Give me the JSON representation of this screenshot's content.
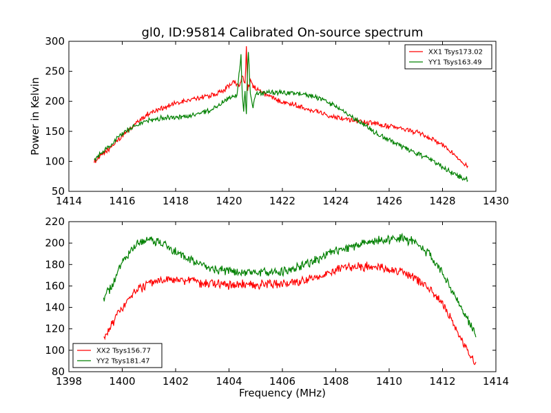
{
  "figure": {
    "title": "gl0, ID:95814 Calibrated On-source spectrum"
  },
  "chart_data": [
    {
      "type": "line",
      "title": "gl0, ID:95814 Calibrated On-source spectrum",
      "xlabel": "",
      "ylabel": "Power in Kelvin",
      "xlim": [
        1414,
        1430
      ],
      "ylim": [
        50,
        300
      ],
      "xticks": [
        1414,
        1416,
        1418,
        1420,
        1422,
        1424,
        1426,
        1428,
        1430
      ],
      "yticks": [
        50,
        100,
        150,
        200,
        250,
        300
      ],
      "grid": false,
      "legend_position": "top-right",
      "series": [
        {
          "name": "XX1 Tsys173.02",
          "color": "#ff0000",
          "points": [
            [
              1414.95,
              100
            ],
            [
              1415.5,
              120
            ],
            [
              1416.0,
              142
            ],
            [
              1416.5,
              163
            ],
            [
              1417.0,
              180
            ],
            [
              1417.5,
              189
            ],
            [
              1418.0,
              196
            ],
            [
              1418.5,
              202
            ],
            [
              1419.0,
              207
            ],
            [
              1419.5,
              212
            ],
            [
              1419.8,
              218
            ],
            [
              1420.0,
              226
            ],
            [
              1420.2,
              232
            ],
            [
              1420.4,
              225
            ],
            [
              1420.5,
              245
            ],
            [
              1420.6,
              230
            ],
            [
              1420.65,
              290
            ],
            [
              1420.7,
              220
            ],
            [
              1420.8,
              235
            ],
            [
              1420.9,
              225
            ],
            [
              1421.0,
              222
            ],
            [
              1421.5,
              208
            ],
            [
              1422.0,
              200
            ],
            [
              1422.5,
              194
            ],
            [
              1423.0,
              187
            ],
            [
              1423.5,
              180
            ],
            [
              1424.0,
              174
            ],
            [
              1424.5,
              170
            ],
            [
              1425.0,
              166
            ],
            [
              1425.5,
              162
            ],
            [
              1426.0,
              158
            ],
            [
              1426.5,
              154
            ],
            [
              1427.0,
              149
            ],
            [
              1427.5,
              140
            ],
            [
              1428.0,
              127
            ],
            [
              1428.5,
              110
            ],
            [
              1428.95,
              91
            ]
          ]
        },
        {
          "name": "YY1 Tsys163.49",
          "color": "#008000",
          "points": [
            [
              1414.95,
              103
            ],
            [
              1415.5,
              125
            ],
            [
              1416.0,
              146
            ],
            [
              1416.5,
              160
            ],
            [
              1417.0,
              168
            ],
            [
              1417.5,
              172
            ],
            [
              1418.0,
              173
            ],
            [
              1418.5,
              175
            ],
            [
              1419.0,
              180
            ],
            [
              1419.5,
              190
            ],
            [
              1420.0,
              205
            ],
            [
              1420.3,
              210
            ],
            [
              1420.45,
              275
            ],
            [
              1420.5,
              205
            ],
            [
              1420.55,
              185
            ],
            [
              1420.6,
              215
            ],
            [
              1420.65,
              180
            ],
            [
              1420.72,
              290
            ],
            [
              1420.8,
              210
            ],
            [
              1420.9,
              190
            ],
            [
              1421.0,
              212
            ],
            [
              1421.5,
              215
            ],
            [
              1422.0,
              214
            ],
            [
              1422.5,
              214
            ],
            [
              1423.0,
              210
            ],
            [
              1423.5,
              203
            ],
            [
              1424.0,
              191
            ],
            [
              1424.5,
              177
            ],
            [
              1425.0,
              163
            ],
            [
              1425.5,
              148
            ],
            [
              1426.0,
              135
            ],
            [
              1426.5,
              125
            ],
            [
              1427.0,
              115
            ],
            [
              1427.5,
              103
            ],
            [
              1428.0,
              90
            ],
            [
              1428.5,
              78
            ],
            [
              1428.95,
              69
            ]
          ]
        }
      ]
    },
    {
      "type": "line",
      "title": "",
      "xlabel": "Frequency (MHz)",
      "ylabel": "",
      "xlim": [
        1398,
        1414
      ],
      "ylim": [
        80,
        220
      ],
      "xticks": [
        1398,
        1400,
        1402,
        1404,
        1406,
        1408,
        1410,
        1412,
        1414
      ],
      "yticks": [
        80,
        100,
        120,
        140,
        160,
        180,
        200,
        220
      ],
      "grid": false,
      "legend_position": "bottom-left",
      "series": [
        {
          "name": "XX2 Tsys156.77",
          "color": "#ff0000",
          "points": [
            [
              1399.3,
              110
            ],
            [
              1399.6,
              123
            ],
            [
              1400.0,
              140
            ],
            [
              1400.5,
              155
            ],
            [
              1401.0,
              162
            ],
            [
              1401.5,
              166
            ],
            [
              1402.0,
              166
            ],
            [
              1402.5,
              165
            ],
            [
              1403.0,
              163
            ],
            [
              1403.5,
              162
            ],
            [
              1404.0,
              161
            ],
            [
              1404.5,
              161
            ],
            [
              1405.0,
              161
            ],
            [
              1405.5,
              162
            ],
            [
              1406.0,
              162
            ],
            [
              1406.5,
              163
            ],
            [
              1407.0,
              166
            ],
            [
              1407.5,
              170
            ],
            [
              1408.0,
              175
            ],
            [
              1408.5,
              178
            ],
            [
              1409.0,
              178
            ],
            [
              1409.5,
              178
            ],
            [
              1410.0,
              176
            ],
            [
              1410.5,
              173
            ],
            [
              1411.0,
              167
            ],
            [
              1411.5,
              158
            ],
            [
              1412.0,
              143
            ],
            [
              1412.5,
              120
            ],
            [
              1413.0,
              97
            ],
            [
              1413.25,
              87
            ]
          ]
        },
        {
          "name": "YY2 Tsys181.47",
          "color": "#008000",
          "points": [
            [
              1399.3,
              147
            ],
            [
              1399.6,
              160
            ],
            [
              1400.0,
              182
            ],
            [
              1400.5,
              198
            ],
            [
              1401.0,
              203
            ],
            [
              1401.5,
              200
            ],
            [
              1402.0,
              192
            ],
            [
              1402.5,
              185
            ],
            [
              1403.0,
              180
            ],
            [
              1403.5,
              176
            ],
            [
              1404.0,
              174
            ],
            [
              1404.5,
              173
            ],
            [
              1405.0,
              172
            ],
            [
              1405.5,
              172
            ],
            [
              1406.0,
              174
            ],
            [
              1406.5,
              177
            ],
            [
              1407.0,
              182
            ],
            [
              1407.5,
              187
            ],
            [
              1408.0,
              192
            ],
            [
              1408.5,
              196
            ],
            [
              1409.0,
              200
            ],
            [
              1409.5,
              202
            ],
            [
              1410.0,
              203
            ],
            [
              1410.5,
              205
            ],
            [
              1411.0,
              200
            ],
            [
              1411.5,
              190
            ],
            [
              1412.0,
              172
            ],
            [
              1412.5,
              148
            ],
            [
              1413.0,
              125
            ],
            [
              1413.25,
              114
            ]
          ]
        }
      ]
    }
  ]
}
